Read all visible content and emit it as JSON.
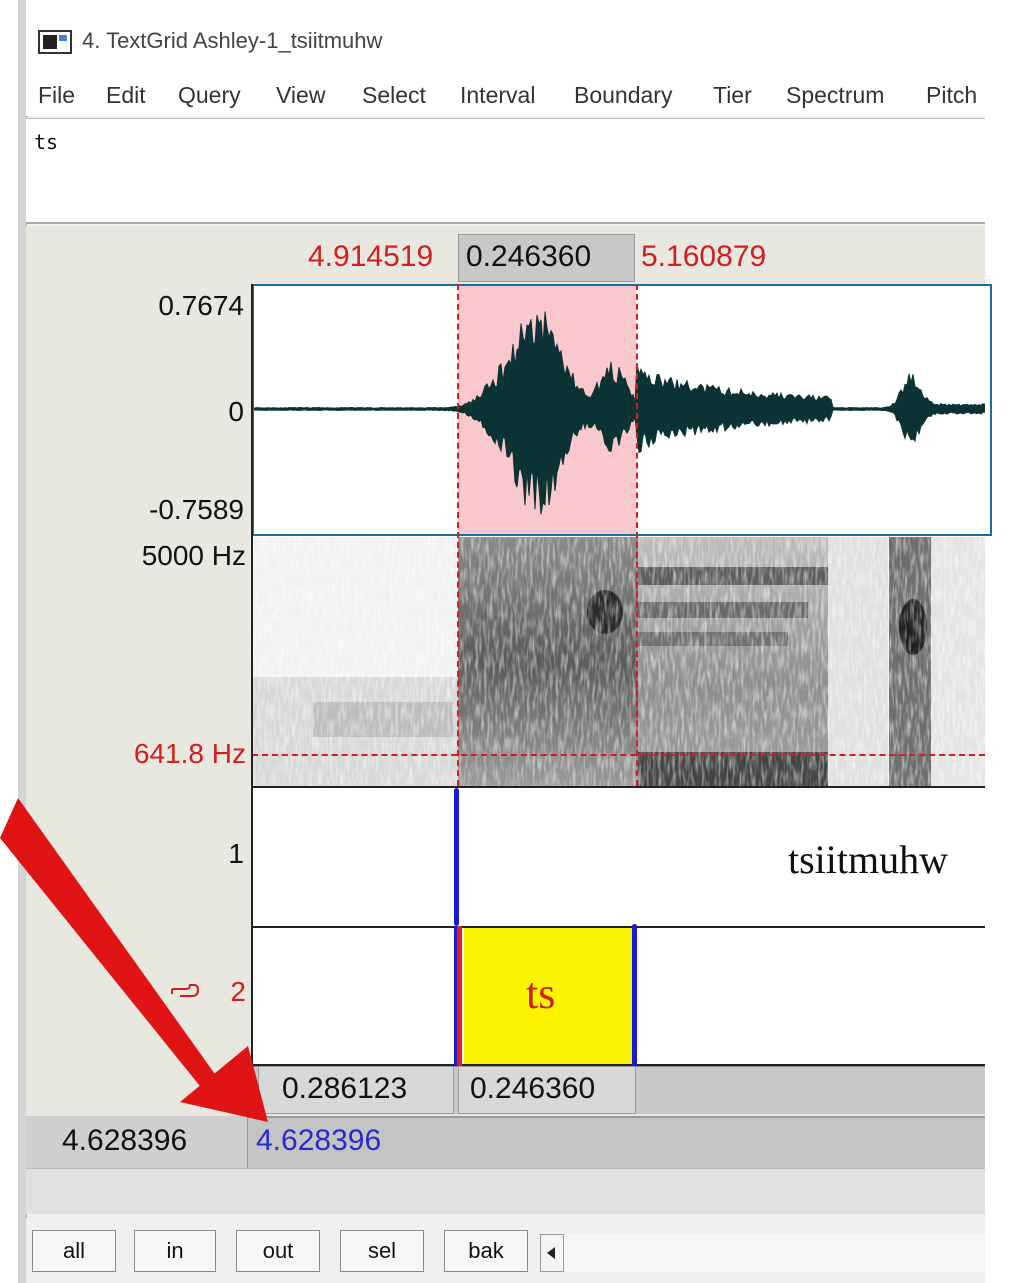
{
  "window": {
    "title": "4. TextGrid Ashley-1_tsiitmuhw"
  },
  "menu": [
    "File",
    "Edit",
    "Query",
    "View",
    "Select",
    "Interval",
    "Boundary",
    "Tier",
    "Spectrum",
    "Pitch"
  ],
  "text_edit": {
    "value": "ts"
  },
  "selection": {
    "start": "4.914519",
    "duration": "0.246360",
    "end": "5.160879"
  },
  "waveform": {
    "max_label": "0.7674",
    "zero_label": "0",
    "min_label": "-0.7589"
  },
  "spectrogram": {
    "top_label": "5000 Hz",
    "cursor_label": "641.8 Hz"
  },
  "tiers": {
    "tier1": {
      "number": "1",
      "interval_text": "tsiitmuhw"
    },
    "tier2": {
      "number": "2",
      "pointer_icon": "pointing-hand-icon",
      "interval_text": "ts"
    }
  },
  "durations": {
    "left_interval": "0.286123",
    "selected_interval": "0.246360"
  },
  "total": {
    "window_duration": "4.628396",
    "visible_duration": "4.628396"
  },
  "buttons": {
    "all": "all",
    "in": "in",
    "out": "out",
    "sel": "sel",
    "bak": "bak"
  },
  "colors": {
    "selection_fill": "#f8c8cc",
    "interval_highlight": "#fbf400",
    "boundary_blue": "#1a1ad6",
    "annotation_red": "#d21e1e",
    "waveform": "#0c3333",
    "visible_duration_text": "#2a2acc"
  }
}
